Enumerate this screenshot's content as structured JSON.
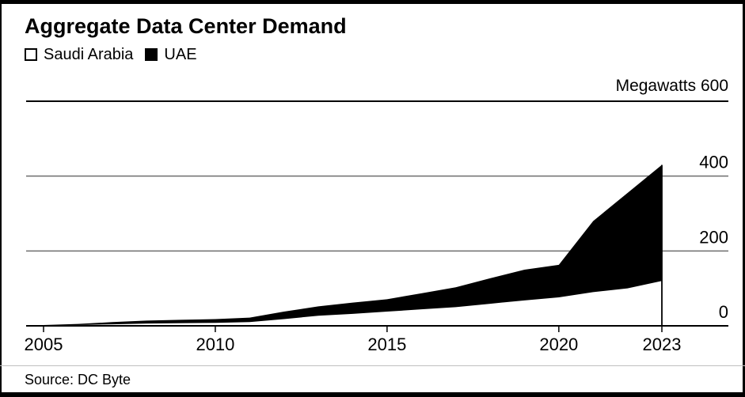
{
  "title": "Aggregate Data Center Demand",
  "legend": [
    {
      "label": "Saudi Arabia",
      "color": "#ffffff"
    },
    {
      "label": "UAE",
      "color": "#000000"
    }
  ],
  "y_axis_header": "Megawatts 600",
  "source": "Source: DC Byte",
  "colors": {
    "area_fill": "#000000",
    "grid_minor": "#6e6e6e",
    "grid_major": "#000000",
    "text": "#000000",
    "divider": "#bfbfbf"
  },
  "chart_data": {
    "type": "area",
    "stacked": true,
    "title": "Aggregate Data Center Demand",
    "ylabel": "Megawatts",
    "xlabel": "",
    "x": [
      2005,
      2006,
      2007,
      2008,
      2009,
      2010,
      2011,
      2012,
      2013,
      2014,
      2015,
      2016,
      2017,
      2018,
      2019,
      2020,
      2021,
      2022,
      2023
    ],
    "series": [
      {
        "name": "Saudi Arabia",
        "color": "#ffffff",
        "values": [
          1,
          2,
          4,
          6,
          7,
          8,
          10,
          18,
          27,
          32,
          38,
          44,
          50,
          59,
          68,
          76,
          90,
          100,
          120
        ]
      },
      {
        "name": "UAE",
        "color": "#000000",
        "values": [
          1,
          3,
          6,
          8,
          9,
          10,
          12,
          20,
          25,
          30,
          33,
          43,
          53,
          68,
          82,
          87,
          190,
          255,
          310
        ]
      }
    ],
    "totals": [
      2,
      5,
      10,
      14,
      16,
      18,
      22,
      38,
      52,
      62,
      71,
      87,
      103,
      127,
      150,
      163,
      280,
      355,
      430
    ],
    "ylim": [
      0,
      600
    ],
    "yticks": [
      0,
      200,
      400,
      600
    ],
    "xticks": [
      2005,
      2010,
      2015,
      2020,
      2023
    ],
    "grid": "horizontal",
    "legend_position": "top-left",
    "end_of_data_line_x": 2023
  }
}
